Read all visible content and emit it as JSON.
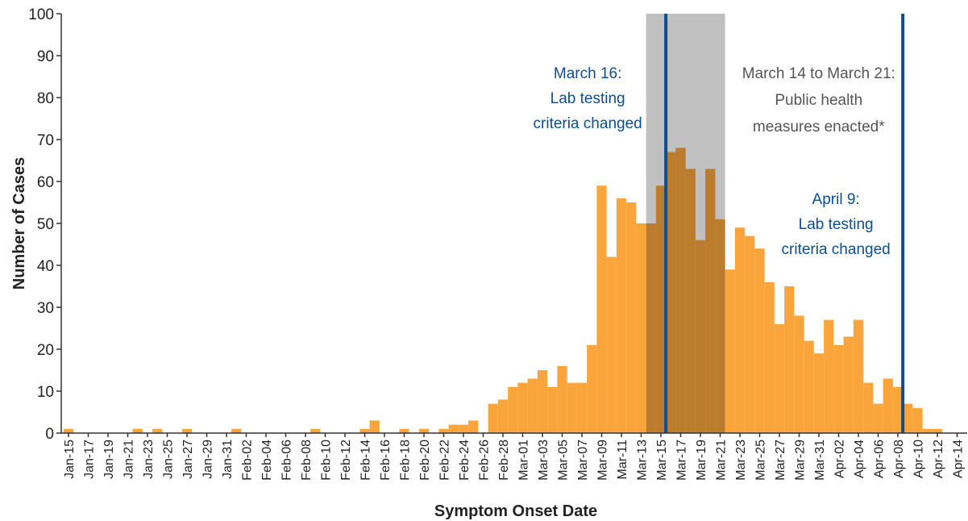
{
  "chart_data": {
    "type": "bar",
    "x_label": "Symptom Onset Date",
    "y_label": "Number of Cases",
    "color": "#f9a53c",
    "categories": [
      "Jan-15",
      null,
      "Jan-17",
      null,
      "Jan-19",
      null,
      "Jan-21",
      null,
      "Jan-23",
      null,
      "Jan-25",
      null,
      "Jan-27",
      null,
      "Jan-29",
      null,
      "Jan-31",
      null,
      "Feb-02",
      null,
      "Feb-04",
      null,
      "Feb-06",
      null,
      "Feb-08",
      null,
      "Feb-10",
      null,
      "Feb-12",
      null,
      "Feb-14",
      null,
      "Feb-16",
      null,
      "Feb-18",
      null,
      "Feb-20",
      null,
      "Feb-22",
      null,
      "Feb-24",
      null,
      "Feb-26",
      null,
      "Feb-28",
      null,
      "Mar-01",
      null,
      "Mar-03",
      null,
      "Mar-05",
      null,
      "Mar-07",
      null,
      "Mar-09",
      null,
      "Mar-11",
      null,
      "Mar-13",
      null,
      "Mar-15",
      null,
      "Mar-17",
      null,
      "Mar-19",
      null,
      "Mar-21",
      null,
      "Mar-23",
      null,
      "Mar-25",
      null,
      "Mar-27",
      null,
      "Mar-29",
      null,
      "Mar-31",
      null,
      "Apr-02",
      null,
      "Apr-04",
      null,
      "Apr-06",
      null,
      "Apr-08",
      null,
      "Apr-10",
      null,
      "Apr-12",
      null,
      "Apr-14"
    ],
    "values": [
      1,
      0,
      0,
      0,
      0,
      0,
      0,
      1,
      0,
      1,
      0,
      0,
      1,
      0,
      0,
      0,
      0,
      1,
      0,
      0,
      0,
      0,
      0,
      0,
      0,
      1,
      0,
      0,
      0,
      0,
      1,
      3,
      0,
      0,
      1,
      0,
      1,
      0,
      1,
      2,
      2,
      3,
      0,
      7,
      8,
      11,
      12,
      13,
      15,
      11,
      16,
      12,
      12,
      21,
      59,
      42,
      56,
      55,
      50,
      50,
      59,
      67,
      68,
      63,
      46,
      63,
      51,
      39,
      49,
      47,
      44,
      36,
      26,
      35,
      28,
      22,
      19,
      27,
      21,
      23,
      27,
      12,
      7,
      13,
      11,
      7,
      6,
      1,
      1,
      0,
      0
    ],
    "ylim": [
      0,
      100
    ],
    "yticks": [
      0,
      10,
      20,
      30,
      40,
      50,
      60,
      70,
      80,
      90,
      100
    ],
    "shaded_period": {
      "start": 59,
      "end": 66,
      "color": "#c0c0c0",
      "label": [
        "March 14 to March 21:",
        "Public health",
        "measures enacted*"
      ]
    },
    "reference_lines": [
      {
        "at": 61,
        "color": "#0d4d91",
        "label": [
          "March 16:",
          "Lab testing",
          "criteria changed"
        ]
      },
      {
        "at": 85,
        "color": "#0d4d91",
        "label": [
          "April 9:",
          "Lab testing",
          "criteria changed"
        ]
      }
    ]
  }
}
